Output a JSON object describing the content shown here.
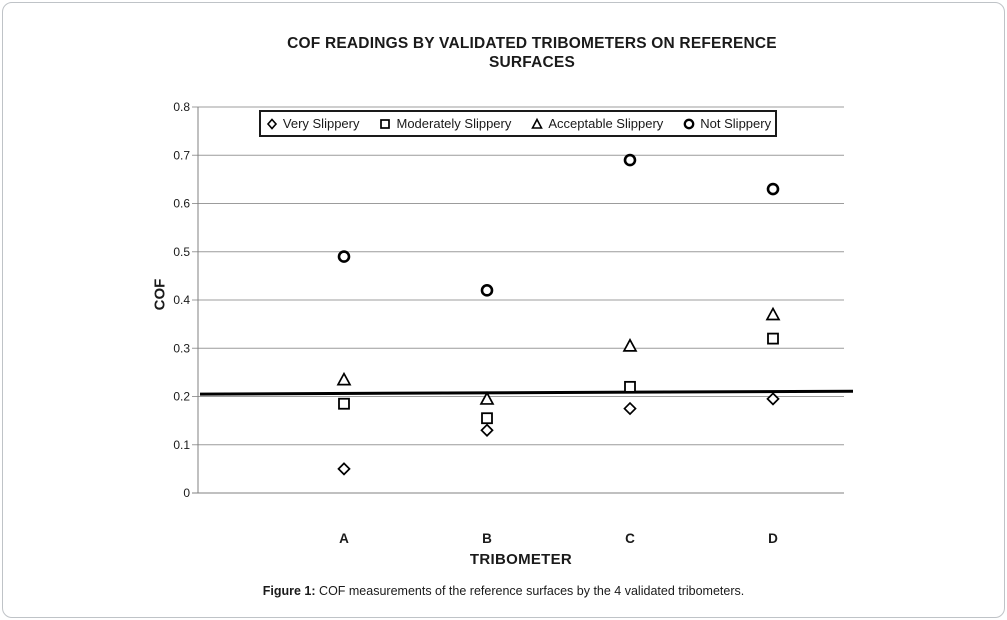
{
  "chart_data": {
    "type": "scatter",
    "title": "COF READINGS BY VALIDATED TRIBOMETERS ON REFERENCE SURFACES",
    "xlabel": "TRIBOMETER",
    "ylabel": "COF",
    "categories": [
      "A",
      "B",
      "C",
      "D"
    ],
    "series": [
      {
        "name": "Very Slippery",
        "marker": "diamond",
        "values": [
          0.05,
          0.13,
          0.175,
          0.195
        ]
      },
      {
        "name": "Moderately Slippery",
        "marker": "square",
        "values": [
          0.185,
          0.155,
          0.22,
          0.32
        ]
      },
      {
        "name": "Acceptable Slippery",
        "marker": "triangle",
        "values": [
          0.235,
          0.195,
          0.305,
          0.37
        ]
      },
      {
        "name": "Not Slippery",
        "marker": "circle",
        "values": [
          0.49,
          0.42,
          0.69,
          0.63
        ]
      }
    ],
    "y_ticks": [
      "0.8",
      "0.7",
      "0.6",
      "0.5",
      "0.4",
      "0.3",
      "0.2",
      "0.1",
      "0"
    ],
    "ylim": [
      0,
      0.8
    ],
    "grid": "horizontal",
    "legend_position": "top-inside",
    "reference_line": {
      "y_start": 0.205,
      "y_end": 0.211,
      "color": "#000000",
      "width": 3
    },
    "colors": {
      "marker": "#000000",
      "gridline": "#9c9c9c",
      "axis": "#808080"
    }
  },
  "caption": {
    "figure_label": "Figure 1:",
    "text": " COF measurements of the reference surfaces by the 4 validated tribometers."
  }
}
